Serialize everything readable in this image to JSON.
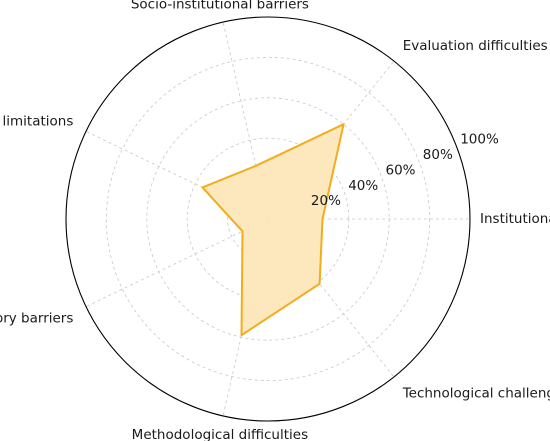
{
  "chart_data": {
    "type": "radar",
    "categories": [
      "Institutional process",
      "Evaluation difficulties",
      "Socio-institutional barriers",
      "Operational limitations",
      "Regulatory barriers",
      "Methodological difficulties",
      "Technological challenges"
    ],
    "values": [
      27,
      60,
      27,
      36,
      14,
      59,
      41
    ],
    "r_ticks": [
      "20%",
      "40%",
      "60%",
      "80%",
      "100%"
    ],
    "r_tick_values": [
      20,
      40,
      60,
      80,
      100
    ],
    "rlim": [
      0,
      100
    ],
    "grid": true,
    "colors": {
      "line": "#f2ad1d",
      "fill": "#fde6b8",
      "outer": "#000000",
      "grid": "#c8c8c8"
    }
  }
}
